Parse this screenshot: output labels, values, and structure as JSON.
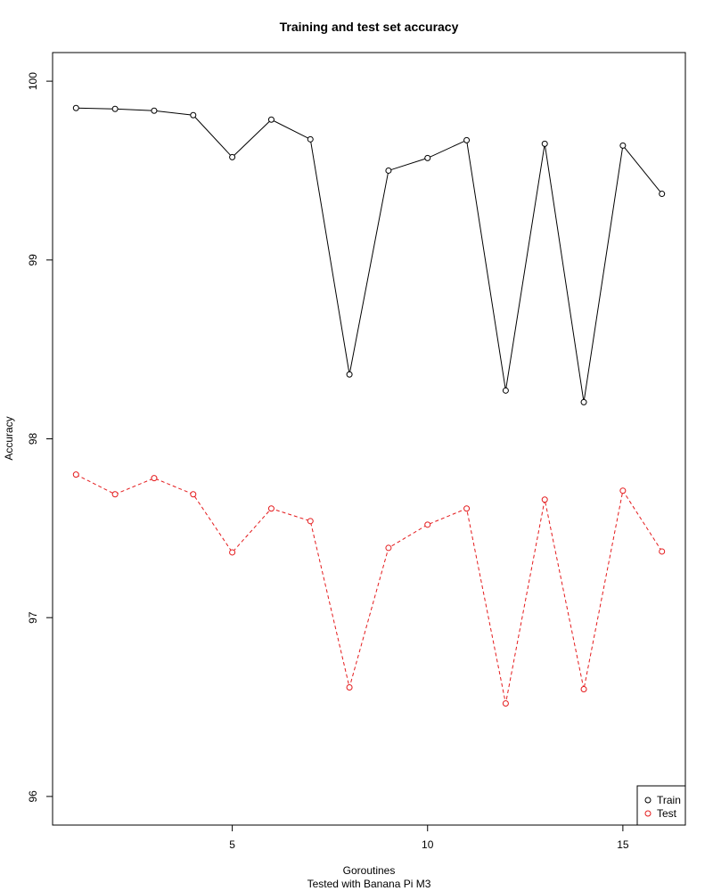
{
  "chart_data": {
    "type": "line",
    "title": "Training and test set accuracy",
    "xlabel": "Goroutines",
    "subtitle": "Tested with Banana Pi M3",
    "ylabel": "Accuracy",
    "xlim": [
      0.4,
      16.6
    ],
    "ylim": [
      95.84,
      100.16
    ],
    "x_ticks": [
      5,
      10,
      15
    ],
    "y_ticks": [
      96,
      97,
      98,
      99,
      100
    ],
    "grid": false,
    "legend_position": "bottom-right",
    "x": [
      1,
      2,
      3,
      4,
      5,
      6,
      7,
      8,
      9,
      10,
      11,
      12,
      13,
      14,
      15,
      16
    ],
    "series": [
      {
        "name": "Train",
        "color": "#000000",
        "line_style": "solid",
        "values": [
          99.85,
          99.845,
          99.835,
          99.81,
          99.575,
          99.785,
          99.675,
          98.36,
          99.5,
          99.57,
          99.67,
          98.27,
          99.65,
          98.205,
          99.64,
          99.37
        ]
      },
      {
        "name": "Test",
        "color": "#e41a1c",
        "line_style": "dashed",
        "values": [
          97.8,
          97.69,
          97.78,
          97.69,
          97.365,
          97.61,
          97.54,
          96.61,
          97.39,
          97.52,
          97.61,
          96.52,
          97.66,
          96.6,
          97.71,
          97.37
        ]
      }
    ]
  }
}
